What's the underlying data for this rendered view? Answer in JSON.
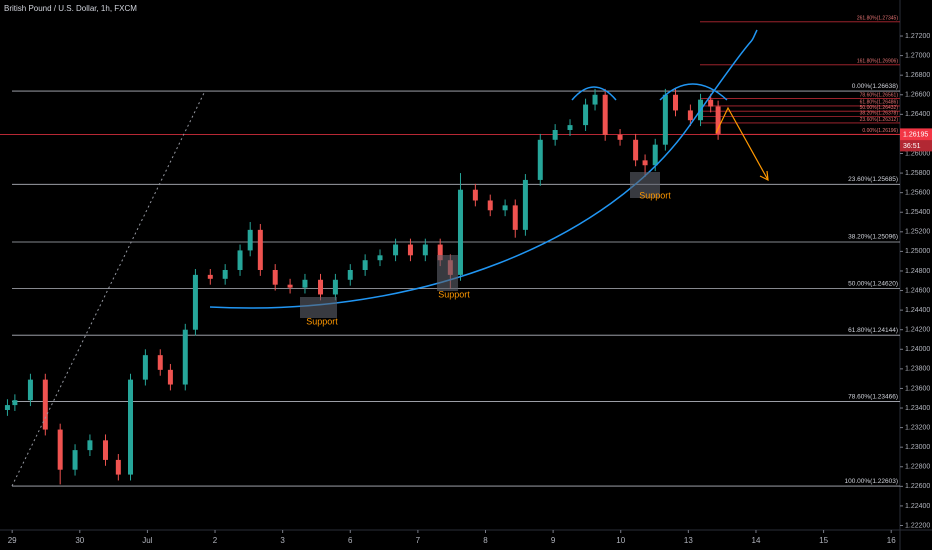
{
  "chart_data": {
    "type": "candlestick",
    "title": "British Pound / U.S. Dollar, 1h, FXCM",
    "up_color": "#26a69a",
    "down_color": "#ef5350",
    "x": [
      -0.07,
      0.04,
      0.27,
      0.49,
      0.71,
      0.93,
      1.15,
      1.38,
      1.57,
      1.75,
      1.97,
      2.19,
      2.34,
      2.56,
      2.71,
      2.93,
      3.15,
      3.37,
      3.52,
      3.67,
      3.89,
      4.11,
      4.33,
      4.56,
      4.78,
      5.0,
      5.22,
      5.44,
      5.67,
      5.89,
      6.11,
      6.33,
      6.48,
      6.63,
      6.85,
      7.07,
      7.29,
      7.44,
      7.59,
      7.81,
      8.03,
      8.25,
      8.48,
      8.62,
      8.77,
      8.99,
      9.22,
      9.36,
      9.51,
      9.66,
      9.81,
      10.03,
      10.18,
      10.33,
      10.44
    ],
    "open": [
      1.2338,
      1.2343,
      1.2348,
      1.2369,
      1.2318,
      1.2277,
      1.2297,
      1.2307,
      1.2287,
      1.2272,
      1.2369,
      1.2394,
      1.2379,
      1.2364,
      1.242,
      1.2476,
      1.2472,
      1.2481,
      1.2501,
      1.2522,
      1.2481,
      1.2466,
      1.2463,
      1.2471,
      1.2456,
      1.2471,
      1.2481,
      1.2491,
      1.2496,
      1.2507,
      1.2496,
      1.2507,
      1.2491,
      1.2476,
      1.2563,
      1.2552,
      1.2542,
      1.2547,
      1.2522,
      1.2573,
      1.2614,
      1.2624,
      1.2629,
      1.265,
      1.266,
      1.2619,
      1.2614,
      1.2593,
      1.2588,
      1.2609,
      1.266,
      1.2644,
      1.2634,
      1.2655,
      1.2648
    ],
    "high": [
      1.2349,
      1.2354,
      1.2375,
      1.2375,
      1.2324,
      1.2303,
      1.2313,
      1.2313,
      1.2293,
      1.2375,
      1.24,
      1.24,
      1.2385,
      1.2426,
      1.2482,
      1.2482,
      1.2487,
      1.2507,
      1.253,
      1.2528,
      1.2487,
      1.2472,
      1.2477,
      1.2477,
      1.2477,
      1.2487,
      1.2497,
      1.2502,
      1.2513,
      1.2513,
      1.2513,
      1.2513,
      1.2497,
      1.258,
      1.2569,
      1.2558,
      1.2553,
      1.2553,
      1.2579,
      1.262,
      1.263,
      1.2635,
      1.2656,
      1.2666,
      1.2666,
      1.2625,
      1.262,
      1.2599,
      1.2615,
      1.2666,
      1.2666,
      1.265,
      1.2661,
      1.2661,
      1.2654
    ],
    "low": [
      1.2332,
      1.2337,
      1.2342,
      1.2312,
      1.2262,
      1.2271,
      1.2291,
      1.2281,
      1.2266,
      1.2266,
      1.2363,
      1.2373,
      1.2358,
      1.2358,
      1.2414,
      1.2466,
      1.2466,
      1.2475,
      1.2495,
      1.2475,
      1.246,
      1.2457,
      1.2457,
      1.245,
      1.245,
      1.2465,
      1.2475,
      1.2485,
      1.249,
      1.249,
      1.249,
      1.2485,
      1.2462,
      1.247,
      1.2546,
      1.2536,
      1.2536,
      1.2514,
      1.2516,
      1.2567,
      1.2608,
      1.2618,
      1.2623,
      1.2644,
      1.2613,
      1.2608,
      1.2587,
      1.2576,
      1.2582,
      1.2603,
      1.2638,
      1.2628,
      1.2628,
      1.2642,
      1.2614
    ],
    "close": [
      1.2343,
      1.2348,
      1.2369,
      1.2318,
      1.2277,
      1.2297,
      1.2307,
      1.2287,
      1.2272,
      1.2369,
      1.2394,
      1.2379,
      1.2364,
      1.242,
      1.2476,
      1.2472,
      1.2481,
      1.2501,
      1.2522,
      1.2481,
      1.2466,
      1.2463,
      1.2471,
      1.2456,
      1.2471,
      1.2481,
      1.2491,
      1.2496,
      1.2507,
      1.2496,
      1.2507,
      1.2491,
      1.2476,
      1.2563,
      1.2552,
      1.2542,
      1.2547,
      1.2522,
      1.2573,
      1.2614,
      1.2624,
      1.2629,
      1.265,
      1.266,
      1.2619,
      1.2614,
      1.2593,
      1.2588,
      1.2609,
      1.266,
      1.2644,
      1.2634,
      1.2655,
      1.2648,
      1.262
    ],
    "xlim": [
      -0.18,
      13.13
    ],
    "xticks": [
      {
        "value": 0,
        "label": "29"
      },
      {
        "value": 1,
        "label": "30"
      },
      {
        "value": 2,
        "label": "Jul"
      },
      {
        "value": 3,
        "label": "2"
      },
      {
        "value": 4,
        "label": "3"
      },
      {
        "value": 5,
        "label": "6"
      },
      {
        "value": 6,
        "label": "7"
      },
      {
        "value": 7,
        "label": "8"
      },
      {
        "value": 8,
        "label": "9"
      },
      {
        "value": 9,
        "label": "10"
      },
      {
        "value": 10,
        "label": "13"
      },
      {
        "value": 11,
        "label": "14"
      },
      {
        "value": 12,
        "label": "15"
      },
      {
        "value": 13,
        "label": "16"
      }
    ],
    "ylim": [
      1.22154,
      1.27568
    ],
    "yticks": [
      {
        "value": 1.222,
        "label": "1.22200"
      },
      {
        "value": 1.224,
        "label": "1.22400"
      },
      {
        "value": 1.226,
        "label": "1.22600"
      },
      {
        "value": 1.228,
        "label": "1.22800"
      },
      {
        "value": 1.23,
        "label": "1.23000"
      },
      {
        "value": 1.232,
        "label": "1.23200"
      },
      {
        "value": 1.234,
        "label": "1.23400"
      },
      {
        "value": 1.236,
        "label": "1.23600"
      },
      {
        "value": 1.238,
        "label": "1.23800"
      },
      {
        "value": 1.24,
        "label": "1.24000"
      },
      {
        "value": 1.242,
        "label": "1.24200"
      },
      {
        "value": 1.244,
        "label": "1.24400"
      },
      {
        "value": 1.246,
        "label": "1.24600"
      },
      {
        "value": 1.248,
        "label": "1.24800"
      },
      {
        "value": 1.25,
        "label": "1.25000"
      },
      {
        "value": 1.252,
        "label": "1.25200"
      },
      {
        "value": 1.254,
        "label": "1.25400"
      },
      {
        "value": 1.256,
        "label": "1.25600"
      },
      {
        "value": 1.258,
        "label": "1.25800"
      },
      {
        "value": 1.26,
        "label": "1.26000"
      },
      {
        "value": 1.264,
        "label": "1.26400"
      },
      {
        "value": 1.266,
        "label": "1.26600"
      },
      {
        "value": 1.268,
        "label": "1.26800"
      },
      {
        "value": 1.27,
        "label": "1.27000"
      },
      {
        "value": 1.272,
        "label": "1.27200"
      }
    ],
    "fib_levels": [
      {
        "value": 1.26638,
        "label": "0.00%(1.26638)"
      },
      {
        "value": 1.25685,
        "label": "23.60%(1.25685)"
      },
      {
        "value": 1.25096,
        "label": "38.20%(1.25096)"
      },
      {
        "value": 1.2462,
        "label": "50.00%(1.24620)"
      },
      {
        "value": 1.24144,
        "label": "61.80%(1.24144)"
      },
      {
        "value": 1.23466,
        "label": "78.60%(1.23466)"
      },
      {
        "value": 1.22603,
        "label": "100.00%(1.22603)"
      }
    ],
    "fib_ext_levels": [
      {
        "value": 1.27345,
        "label": "261.80%(1.27345)"
      },
      {
        "value": 1.26906,
        "label": "161.80%(1.26906)"
      },
      {
        "value": 1.26561,
        "label": "78.60%(1.26561)"
      },
      {
        "value": 1.26486,
        "label": "61.80%(1.26486)"
      },
      {
        "value": 1.26432,
        "label": "50.00%(1.26432)"
      },
      {
        "value": 1.26378,
        "label": "38.20%(1.26378)"
      },
      {
        "value": 1.26312,
        "label": "23.60%(1.26312)"
      },
      {
        "value": 1.26196,
        "label": "0.00%(1.26196)"
      }
    ],
    "last_price": {
      "value": 1.26195,
      "label": "1.26195",
      "countdown": "36:51"
    },
    "annotations": [
      "Support",
      "Support",
      "Support"
    ]
  }
}
